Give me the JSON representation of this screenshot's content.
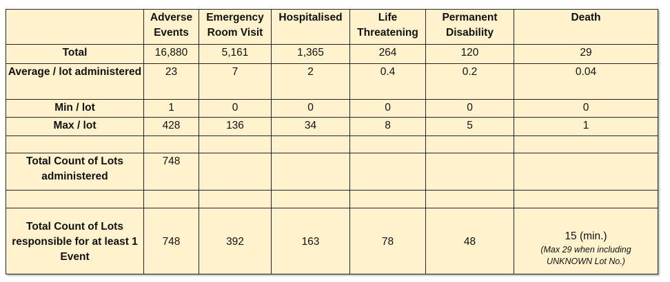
{
  "headers": [
    "",
    "Adverse Events",
    "Emergency Room Visit",
    "Hospitalised",
    "Life Threatening",
    "Permanent Disability",
    "Death"
  ],
  "rows": [
    {
      "label": "Total",
      "values": [
        "16,880",
        "5,161",
        "1,365",
        "264",
        "120",
        "29"
      ]
    },
    {
      "label": "Average / lot administered",
      "values": [
        "23",
        "7",
        "2",
        "0.4",
        "0.2",
        "0.04"
      ]
    },
    {
      "label": "Min / lot",
      "values": [
        "1",
        "0",
        "0",
        "0",
        "0",
        "0"
      ]
    },
    {
      "label": "Max / lot",
      "values": [
        "428",
        "136",
        "34",
        "8",
        "5",
        "1"
      ]
    },
    {
      "label": "",
      "values": [
        "",
        "",
        "",
        "",
        "",
        ""
      ]
    },
    {
      "label": "Total Count of Lots administered",
      "values": [
        "748",
        "",
        "",
        "",
        "",
        ""
      ]
    },
    {
      "label": "",
      "values": [
        "",
        "",
        "",
        "",
        "",
        ""
      ]
    },
    {
      "label": "Total Count of Lots responsible for at least 1 Event",
      "values": [
        "748",
        "392",
        "163",
        "78",
        "48",
        "15 (min.)"
      ]
    }
  ],
  "death_note": "(Max 29 when including UNKNOWN Lot No.)"
}
